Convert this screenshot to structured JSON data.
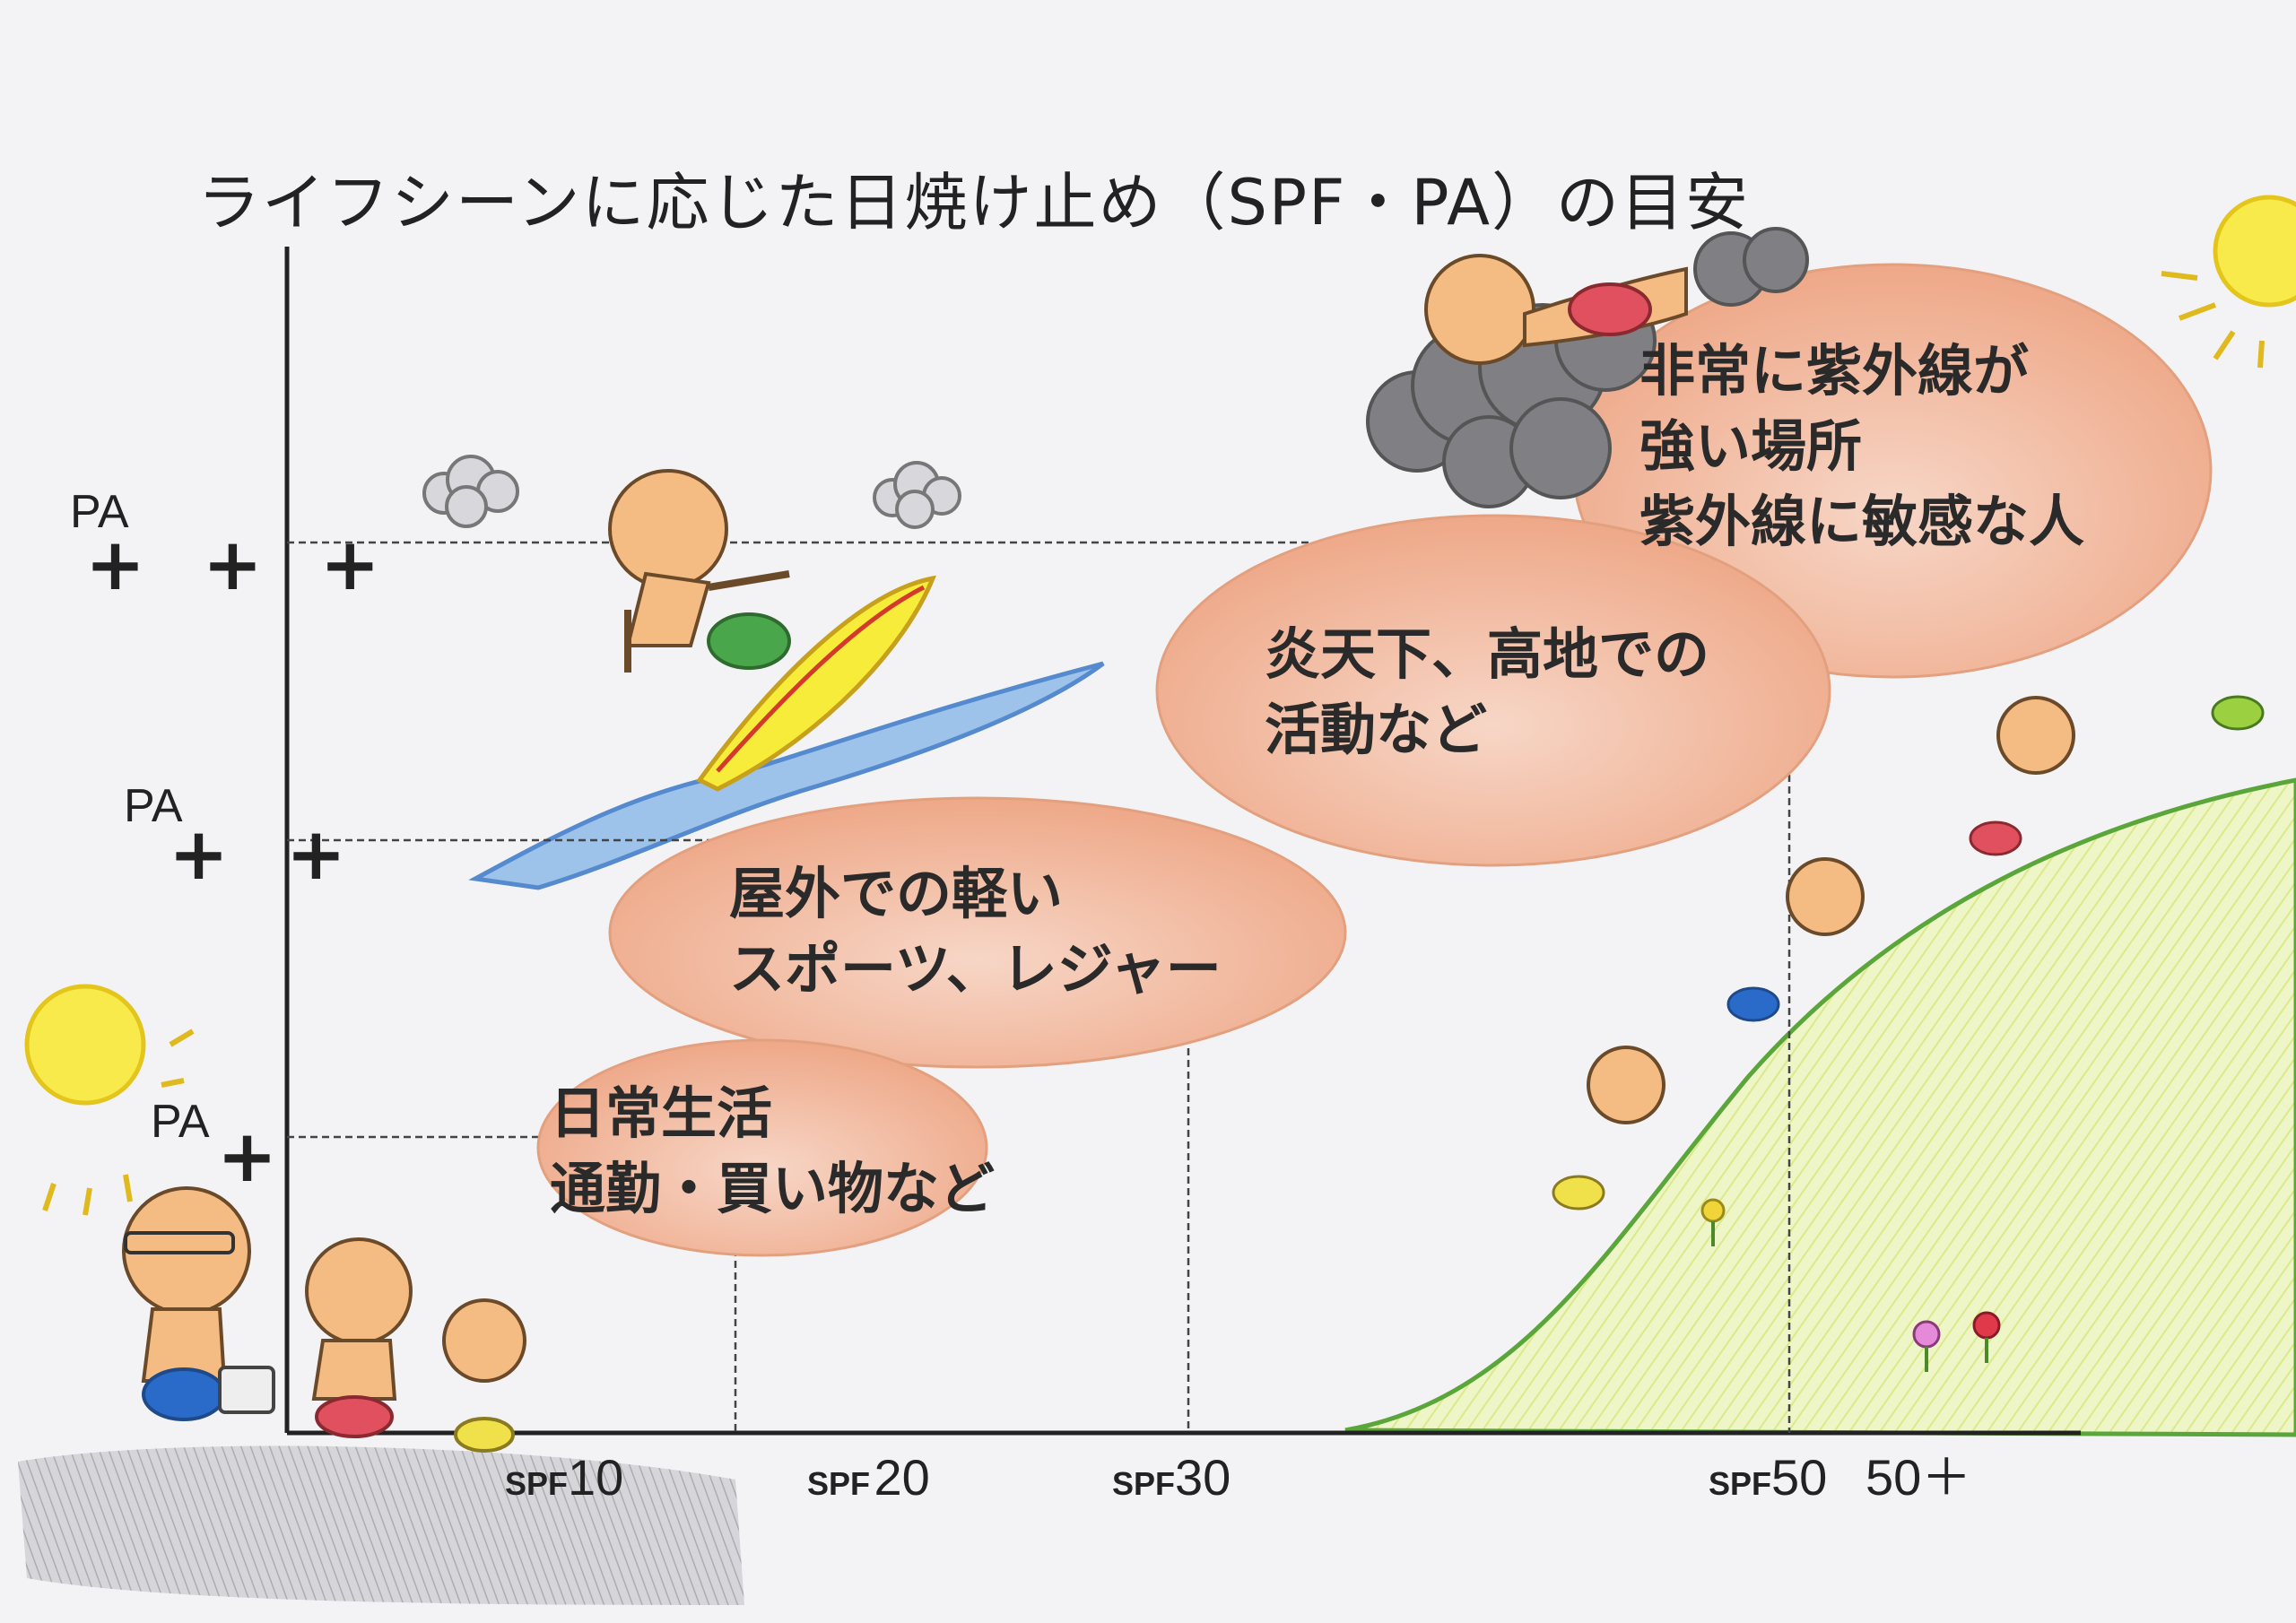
{
  "title": "ライフシーンに応じた日焼け止め（SPF・PA）の目安",
  "pa_levels": [
    {
      "label": "PA",
      "plus": "+ + +"
    },
    {
      "label": "PA",
      "plus": "+ +"
    },
    {
      "label": "PA",
      "plus": "+"
    }
  ],
  "spf_levels": [
    {
      "prefix": "SPF",
      "value": "10"
    },
    {
      "prefix": "SPF",
      "value": "20"
    },
    {
      "prefix": "SPF",
      "value": "30"
    },
    {
      "prefix": "SPF",
      "value": "50"
    }
  ],
  "spf_extra": "50＋",
  "scenes": [
    {
      "lines": [
        "日常生活",
        "通勤・買い物など"
      ]
    },
    {
      "lines": [
        "屋外での軽い",
        "スポーツ、レジャー"
      ]
    },
    {
      "lines": [
        "炎天下、高地での",
        "活動など"
      ]
    },
    {
      "lines": [
        "非常に紫外線が",
        "強い場所",
        "紫外線に敏感な人"
      ]
    }
  ],
  "colors": {
    "bubble": "#f0b394",
    "bubble_edge": "#e79f7c",
    "skin": "#f4bb82",
    "hill": "#e9f3b8",
    "sea": "#4a8bd6",
    "sun": "#f4e23c"
  },
  "icons": [
    "sun-icon",
    "cloud-icon",
    "wave-icon",
    "surfboard-icon",
    "hill-icon",
    "flower-icon",
    "person-icon",
    "briefcase-icon"
  ]
}
